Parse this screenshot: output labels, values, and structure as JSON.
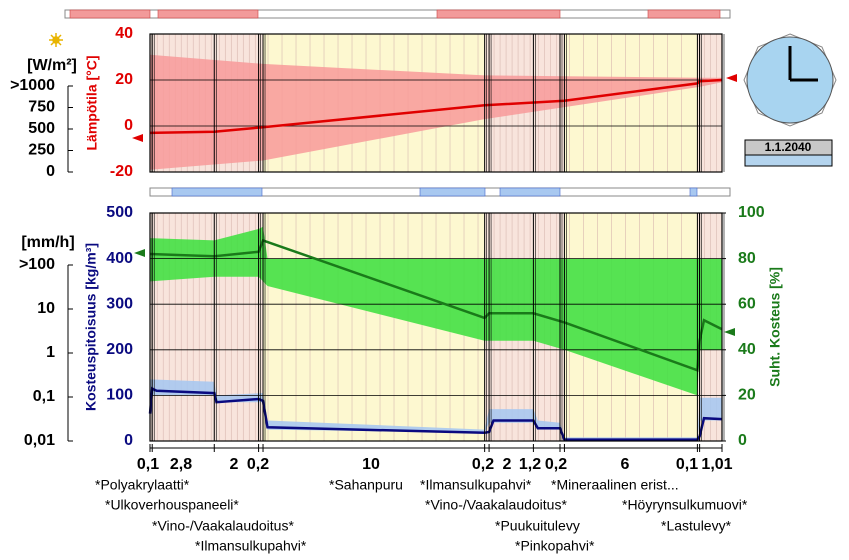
{
  "chart_data": [
    {
      "type": "line",
      "y_label": "Lämpötila [°C]",
      "color": "#e00000",
      "band_color": "#f89a9a",
      "tick_color": "#e00000",
      "xlim": [
        0,
        25.81
      ],
      "ylim": [
        -20,
        40
      ],
      "yticks": [
        -20,
        0,
        20,
        40
      ],
      "grid": true,
      "x": [
        0,
        2.9,
        5.1,
        15.1,
        18.7,
        24.7,
        24.8,
        25.81
      ],
      "values": [
        -3,
        -2.5,
        -0.5,
        9,
        11,
        18.5,
        19.5,
        20
      ],
      "band": {
        "x": [
          0,
          5.1,
          15.1,
          24.8,
          25.81
        ],
        "max": [
          31,
          27,
          22,
          21,
          21
        ],
        "min": [
          -19,
          -15,
          3,
          17,
          19
        ]
      }
    },
    {
      "type": "line",
      "y_label": "Kosteuspitoisuus [kg/m³]",
      "y2_label": "Suht. Kosteus [%]",
      "xlim": [
        0,
        25.81
      ],
      "ylim": [
        0,
        500
      ],
      "yticks": [
        0,
        100,
        200,
        300,
        400,
        500
      ],
      "y2lim": [
        0,
        100
      ],
      "y2ticks": [
        0,
        20,
        40,
        60,
        80,
        100
      ],
      "grid": true,
      "series": [
        {
          "color": "#0a0a80",
          "band_color": "#a8c8f0",
          "x": [
            0,
            0.1,
            0.3,
            2.9,
            3.0,
            4.9,
            5.1,
            5.3,
            15.1,
            15.3,
            15.5,
            17.3,
            17.5,
            18.5,
            18.7,
            24.7,
            24.8,
            25.0,
            25.81
          ],
          "values": [
            60,
            115,
            110,
            105,
            85,
            92,
            88,
            30,
            18,
            20,
            45,
            45,
            28,
            28,
            3,
            3,
            10,
            50,
            48
          ],
          "band": {
            "x": [
              0,
              2.9,
              3.0,
              5.1,
              5.3,
              15.1,
              15.3,
              17.3,
              17.5,
              18.5,
              18.7,
              24.7,
              24.8,
              25.81
            ],
            "max": [
              135,
              130,
              100,
              105,
              45,
              25,
              70,
              70,
              45,
              40,
              8,
              8,
              95,
              95
            ],
            "min": [
              100,
              100,
              85,
              85,
              25,
              18,
              40,
              40,
              25,
              25,
              2,
              2,
              45,
              45
            ]
          }
        },
        {
          "axis": "y2",
          "color": "#1a7a1a",
          "band_color": "#44e044",
          "x": [
            0,
            2.9,
            4.9,
            5.1,
            15.1,
            15.3,
            17.3,
            18.7,
            24.7,
            24.8,
            25.0,
            25.81
          ],
          "values": [
            82,
            81,
            83,
            88,
            54,
            56,
            56,
            52,
            31,
            44,
            53,
            49
          ],
          "band": {
            "x": [
              0,
              2.9,
              4.9,
              5.1,
              5.3,
              15.1,
              17.3,
              18.7,
              24.7,
              24.8,
              25.81
            ],
            "max": [
              89,
              88,
              93,
              94,
              80,
              80,
              80,
              80,
              80,
              80,
              80
            ],
            "min": [
              70,
              72,
              72,
              70,
              68,
              44,
              44,
              40,
              20,
              40,
              40
            ]
          }
        }
      ]
    }
  ],
  "radiation_axis": {
    "label": "[W/m²]",
    "ylim": [
      0,
      1000
    ],
    "yticks": [
      0,
      250,
      500,
      750,
      {
        "value": 1000,
        "label": ">1000"
      }
    ]
  },
  "rain_axis": {
    "label": "[mm/h]",
    "log": true,
    "ylim": [
      0.01,
      100
    ],
    "yticks": [
      {
        "value": 0.01,
        "label": "0,01"
      },
      {
        "value": 0.1,
        "label": "0,1"
      },
      1,
      10,
      {
        "value": 100,
        "label": ">100"
      }
    ]
  },
  "layers": [
    {
      "thickness": {
        "value": 0.1,
        "label": "0,1"
      },
      "name": "*Polyakrylaatti*",
      "color": "#f8e4dc"
    },
    {
      "thickness": {
        "value": 2.8,
        "label": "2,8"
      },
      "name": "*Ulkoverhouspaneeli*",
      "color": "#f8e4dc"
    },
    {
      "thickness": 2,
      "name": "*Vino-/Vaakalaudoitus*",
      "color": "#f8e4dc"
    },
    {
      "thickness": {
        "value": 0.2,
        "label": "0,2"
      },
      "name": "*Ilmansulkupahvi*",
      "color": "#f8e4dc"
    },
    {
      "thickness": 10,
      "name": "*Sahanpuru",
      "color": "#fdf8d0"
    },
    {
      "thickness": {
        "value": 0.2,
        "label": "0,2"
      },
      "name": "*Ilmansulkupahvi*",
      "color": "#f8e4dc"
    },
    {
      "thickness": 2,
      "name": "*Vino-/Vaakalaudoitus*",
      "color": "#f8e4dc"
    },
    {
      "thickness": {
        "value": 1.2,
        "label": "1,2"
      },
      "name": "*Puukuitulevy",
      "color": "#f8e4dc"
    },
    {
      "thickness": {
        "value": 0.2,
        "label": "0,2"
      },
      "name": "*Pinkopahvi*",
      "color": "#f8e4dc"
    },
    {
      "thickness": 6,
      "name": "*Mineraalinen erist...",
      "color": "#fdf8d0"
    },
    {
      "thickness": {
        "value": 0.1,
        "label": "0,1"
      },
      "name": "*Höyrynsulkumuovi*",
      "color": "#f8e4dc"
    },
    {
      "thickness": {
        "value": 1.01,
        "label": "1,01"
      },
      "name": "*Lastulevy*",
      "color": "#f8e4dc"
    }
  ],
  "date": "1.1.2040"
}
